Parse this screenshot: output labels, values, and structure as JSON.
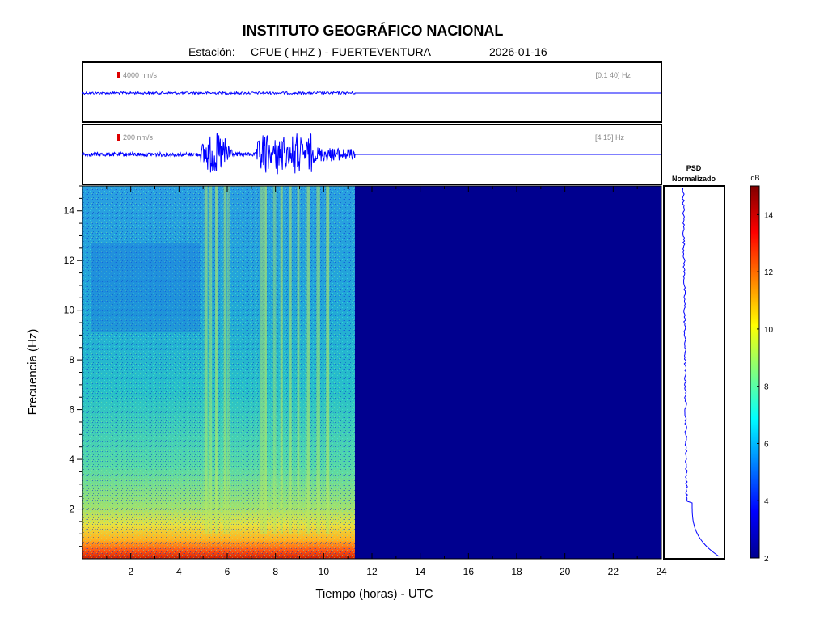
{
  "header": {
    "title": "INSTITUTO GEOGRÁFICO NACIONAL",
    "station_label": "Estación:",
    "station": "CFUE ( HHZ ) - FUERTEVENTURA",
    "date": "2026-01-16"
  },
  "chart_data": [
    {
      "type": "line",
      "panel": "seismogram-broadband",
      "scale_label": "4000 nm/s",
      "band_label": "[0.1 40] Hz",
      "x_units": "hours UTC",
      "xlim": [
        0,
        24
      ],
      "data_end_hour": 11.3,
      "series": [
        {
          "color": "#0000ff"
        }
      ]
    },
    {
      "type": "line",
      "panel": "seismogram-filtered",
      "scale_label": "200 nm/s",
      "band_label": "[4 15] Hz",
      "x_units": "hours UTC",
      "xlim": [
        0,
        24
      ],
      "data_end_hour": 11.3,
      "bursts_hours": [
        [
          4.9,
          6.2
        ],
        [
          7.2,
          9.5
        ],
        [
          9.5,
          11.3
        ]
      ],
      "series": [
        {
          "color": "#0000ff"
        }
      ]
    },
    {
      "type": "heatmap",
      "panel": "spectrogram",
      "xlabel": "Tiempo (horas) - UTC",
      "ylabel": "Frecuencia  (Hz)",
      "xlim": [
        0,
        24
      ],
      "ylim": [
        0,
        15
      ],
      "xticks": [
        2,
        4,
        6,
        8,
        10,
        12,
        14,
        16,
        18,
        20,
        22,
        24
      ],
      "yticks": [
        2,
        4,
        6,
        8,
        10,
        12,
        14
      ],
      "data_end_hour": 11.3,
      "colorbar": {
        "label": "dB",
        "range": [
          2,
          15
        ],
        "ticks": [
          2,
          4,
          6,
          8,
          10,
          12,
          14
        ],
        "colormap": "jet"
      }
    },
    {
      "type": "line",
      "panel": "psd",
      "title_line1": "PSD",
      "title_line2": "Normalizado",
      "series": [
        {
          "color": "#0000ff"
        }
      ]
    }
  ]
}
